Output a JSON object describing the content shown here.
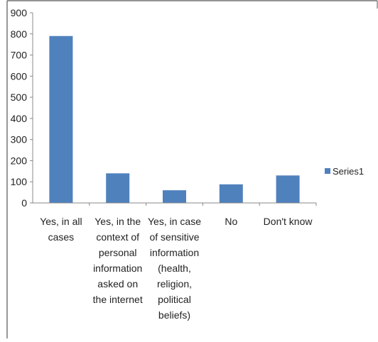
{
  "chart_data": {
    "type": "bar",
    "title": "",
    "xlabel": "",
    "ylabel": "",
    "categories": [
      [
        "Yes, in all",
        "cases"
      ],
      [
        "Yes, in the",
        "context of",
        "personal",
        "information",
        "asked on",
        "the internet"
      ],
      [
        "Yes, in case",
        "of sensitive",
        "information",
        "(health,",
        "religion,",
        "political",
        "beliefs)"
      ],
      [
        "No"
      ],
      [
        "Don't know"
      ]
    ],
    "series": [
      {
        "name": "Series1",
        "values": [
          790,
          140,
          60,
          88,
          130
        ]
      }
    ],
    "ylim": [
      0,
      900
    ],
    "yticks": [
      "0",
      "100",
      "200",
      "300",
      "400",
      "500",
      "600",
      "700",
      "800",
      "900"
    ],
    "grid": false,
    "legend_position": "right",
    "colors": {
      "bar": "#4f81bd",
      "axis": "#888888",
      "frame": "#555555",
      "text": "#222222"
    }
  }
}
